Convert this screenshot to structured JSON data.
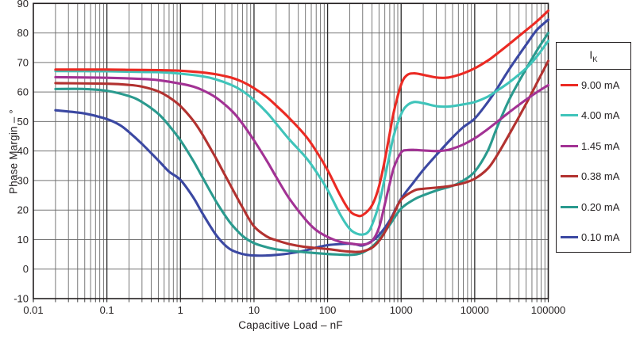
{
  "chart_data": {
    "type": "line",
    "title": "",
    "xlabel": "Capacitive Load – nF",
    "ylabel": "Phase Margin – °",
    "x_scale": "log",
    "xlim": [
      0.01,
      100000
    ],
    "ylim": [
      -10,
      90
    ],
    "x_tick_labels": [
      "0.01",
      "0.1",
      "1",
      "10",
      "100",
      "1000",
      "10000",
      "100000"
    ],
    "x_tick_values": [
      0.01,
      0.1,
      1,
      10,
      100,
      1000,
      10000,
      100000
    ],
    "y_tick_values": [
      90,
      80,
      70,
      60,
      50,
      40,
      30,
      20,
      10,
      0,
      -10
    ],
    "grid": "on",
    "legend_position": "right",
    "legend_title_main": "I",
    "legend_title_sub": "K",
    "series": [
      {
        "name": "9.00 mA",
        "color": "#eb2a23",
        "points": [
          [
            0.02,
            67.6
          ],
          [
            0.05,
            67.6
          ],
          [
            0.1,
            67.6
          ],
          [
            0.2,
            67.5
          ],
          [
            0.5,
            67.4
          ],
          [
            1,
            67.2
          ],
          [
            2,
            66.6
          ],
          [
            3,
            66.0
          ],
          [
            5,
            64.8
          ],
          [
            7,
            63.4
          ],
          [
            10,
            61.3
          ],
          [
            15,
            58.2
          ],
          [
            20,
            55.4
          ],
          [
            30,
            51.2
          ],
          [
            50,
            45.2
          ],
          [
            70,
            40.0
          ],
          [
            100,
            33.5
          ],
          [
            150,
            24.8
          ],
          [
            200,
            19.7
          ],
          [
            250,
            18.2
          ],
          [
            300,
            18.3
          ],
          [
            400,
            21.5
          ],
          [
            500,
            28.0
          ],
          [
            600,
            37.0
          ],
          [
            700,
            46.0
          ],
          [
            800,
            53.5
          ],
          [
            1000,
            62.5
          ],
          [
            1200,
            65.7
          ],
          [
            1500,
            66.3
          ],
          [
            2000,
            65.8
          ],
          [
            3000,
            64.9
          ],
          [
            4000,
            64.8
          ],
          [
            5000,
            65.2
          ],
          [
            7000,
            66.3
          ],
          [
            10000,
            68.0
          ],
          [
            15000,
            70.6
          ],
          [
            20000,
            72.9
          ],
          [
            30000,
            76.4
          ],
          [
            50000,
            80.9
          ],
          [
            70000,
            83.9
          ],
          [
            100000,
            87.5
          ]
        ]
      },
      {
        "name": "4.00 mA",
        "color": "#3fc4ba",
        "points": [
          [
            0.02,
            67.1
          ],
          [
            0.1,
            67.0
          ],
          [
            0.3,
            66.8
          ],
          [
            0.5,
            66.7
          ],
          [
            1,
            66.2
          ],
          [
            2,
            65.3
          ],
          [
            3,
            64.3
          ],
          [
            5,
            62.3
          ],
          [
            7,
            60.3
          ],
          [
            10,
            57.3
          ],
          [
            15,
            53.0
          ],
          [
            20,
            49.3
          ],
          [
            30,
            44.0
          ],
          [
            50,
            38.0
          ],
          [
            70,
            33.0
          ],
          [
            100,
            26.8
          ],
          [
            150,
            18.3
          ],
          [
            200,
            13.6
          ],
          [
            250,
            12.0
          ],
          [
            300,
            11.7
          ],
          [
            350,
            12.4
          ],
          [
            400,
            14.8
          ],
          [
            500,
            22.0
          ],
          [
            600,
            31.0
          ],
          [
            700,
            39.0
          ],
          [
            800,
            45.5
          ],
          [
            1000,
            52.5
          ],
          [
            1200,
            55.4
          ],
          [
            1500,
            56.6
          ],
          [
            2000,
            56.2
          ],
          [
            3000,
            55.2
          ],
          [
            4000,
            55.0
          ],
          [
            5000,
            55.2
          ],
          [
            7000,
            55.8
          ],
          [
            10000,
            56.6
          ],
          [
            15000,
            58.4
          ],
          [
            20000,
            60.4
          ],
          [
            30000,
            63.4
          ],
          [
            50000,
            68.0
          ],
          [
            70000,
            72.0
          ],
          [
            100000,
            77.3
          ]
        ]
      },
      {
        "name": "1.45 mA",
        "color": "#a23294",
        "points": [
          [
            0.02,
            65.0
          ],
          [
            0.1,
            64.8
          ],
          [
            0.3,
            64.4
          ],
          [
            0.5,
            64.0
          ],
          [
            1,
            62.8
          ],
          [
            1.5,
            61.8
          ],
          [
            2,
            60.6
          ],
          [
            3,
            58.2
          ],
          [
            5,
            53.6
          ],
          [
            7,
            49.2
          ],
          [
            10,
            43.6
          ],
          [
            15,
            36.6
          ],
          [
            20,
            31.2
          ],
          [
            30,
            24.0
          ],
          [
            50,
            16.8
          ],
          [
            70,
            13.2
          ],
          [
            100,
            10.9
          ],
          [
            150,
            9.2
          ],
          [
            200,
            8.7
          ],
          [
            300,
            8.3
          ],
          [
            400,
            9.5
          ],
          [
            500,
            14.0
          ],
          [
            600,
            22.0
          ],
          [
            700,
            29.0
          ],
          [
            800,
            34.5
          ],
          [
            1000,
            39.5
          ],
          [
            1200,
            40.3
          ],
          [
            1500,
            40.4
          ],
          [
            2000,
            40.2
          ],
          [
            3000,
            40.0
          ],
          [
            4000,
            40.2
          ],
          [
            5000,
            40.8
          ],
          [
            7000,
            42.2
          ],
          [
            10000,
            44.3
          ],
          [
            15000,
            47.4
          ],
          [
            20000,
            49.8
          ],
          [
            30000,
            53.3
          ],
          [
            50000,
            57.4
          ],
          [
            70000,
            59.9
          ],
          [
            100000,
            62.3
          ]
        ]
      },
      {
        "name": "0.38 mA",
        "color": "#b23230",
        "points": [
          [
            0.02,
            63.0
          ],
          [
            0.1,
            62.8
          ],
          [
            0.2,
            62.4
          ],
          [
            0.3,
            61.8
          ],
          [
            0.5,
            60.2
          ],
          [
            0.7,
            58.2
          ],
          [
            1,
            55.2
          ],
          [
            1.5,
            50.2
          ],
          [
            2,
            45.5
          ],
          [
            3,
            37.8
          ],
          [
            4,
            32.0
          ],
          [
            5,
            27.5
          ],
          [
            7,
            20.8
          ],
          [
            10,
            14.5
          ],
          [
            15,
            11.0
          ],
          [
            20,
            9.8
          ],
          [
            30,
            8.5
          ],
          [
            50,
            7.5
          ],
          [
            100,
            6.8
          ],
          [
            150,
            6.2
          ],
          [
            200,
            5.9
          ],
          [
            250,
            5.8
          ],
          [
            300,
            6.0
          ],
          [
            400,
            7.2
          ],
          [
            500,
            9.5
          ],
          [
            600,
            12.5
          ],
          [
            700,
            15.8
          ],
          [
            800,
            18.8
          ],
          [
            1000,
            23.5
          ],
          [
            1500,
            26.6
          ],
          [
            2000,
            27.2
          ],
          [
            3000,
            27.6
          ],
          [
            4000,
            27.9
          ],
          [
            5000,
            28.3
          ],
          [
            7000,
            29.1
          ],
          [
            10000,
            30.6
          ],
          [
            15000,
            34.0
          ],
          [
            20000,
            38.4
          ],
          [
            30000,
            46.0
          ],
          [
            50000,
            56.0
          ],
          [
            70000,
            63.0
          ],
          [
            100000,
            70.5
          ]
        ]
      },
      {
        "name": "0.20 mA",
        "color": "#2a9a8e",
        "points": [
          [
            0.02,
            61.0
          ],
          [
            0.05,
            61.0
          ],
          [
            0.1,
            60.4
          ],
          [
            0.2,
            58.6
          ],
          [
            0.3,
            56.6
          ],
          [
            0.5,
            52.6
          ],
          [
            0.7,
            48.6
          ],
          [
            1,
            43.6
          ],
          [
            1.5,
            36.6
          ],
          [
            2,
            31.0
          ],
          [
            3,
            23.2
          ],
          [
            4,
            18.3
          ],
          [
            5,
            15.0
          ],
          [
            7,
            11.2
          ],
          [
            10,
            8.8
          ],
          [
            15,
            7.4
          ],
          [
            20,
            6.7
          ],
          [
            30,
            6.2
          ],
          [
            50,
            5.7
          ],
          [
            100,
            5.1
          ],
          [
            150,
            4.9
          ],
          [
            200,
            4.8
          ],
          [
            250,
            5.0
          ],
          [
            300,
            5.6
          ],
          [
            400,
            7.5
          ],
          [
            500,
            10.0
          ],
          [
            700,
            15.0
          ],
          [
            1000,
            20.5
          ],
          [
            1500,
            23.6
          ],
          [
            2000,
            25.0
          ],
          [
            3000,
            26.6
          ],
          [
            5000,
            28.2
          ],
          [
            7000,
            30.0
          ],
          [
            10000,
            33.0
          ],
          [
            15000,
            40.0
          ],
          [
            20000,
            47.8
          ],
          [
            30000,
            57.8
          ],
          [
            50000,
            67.8
          ],
          [
            70000,
            74.0
          ],
          [
            100000,
            80.0
          ]
        ]
      },
      {
        "name": "0.10 mA",
        "color": "#3b48a2",
        "points": [
          [
            0.02,
            53.8
          ],
          [
            0.05,
            52.7
          ],
          [
            0.1,
            50.8
          ],
          [
            0.15,
            48.8
          ],
          [
            0.2,
            46.4
          ],
          [
            0.3,
            42.4
          ],
          [
            0.5,
            36.8
          ],
          [
            0.7,
            33.0
          ],
          [
            1,
            30.2
          ],
          [
            1.5,
            24.2
          ],
          [
            2,
            18.8
          ],
          [
            3,
            11.8
          ],
          [
            4,
            8.2
          ],
          [
            5,
            6.4
          ],
          [
            7,
            5.1
          ],
          [
            10,
            4.6
          ],
          [
            15,
            4.6
          ],
          [
            20,
            4.8
          ],
          [
            30,
            5.3
          ],
          [
            50,
            6.3
          ],
          [
            70,
            7.3
          ],
          [
            100,
            8.1
          ],
          [
            150,
            8.5
          ],
          [
            200,
            8.6
          ],
          [
            250,
            8.3
          ],
          [
            300,
            8.0
          ],
          [
            400,
            9.5
          ],
          [
            500,
            11.5
          ],
          [
            700,
            16.5
          ],
          [
            1000,
            23.8
          ],
          [
            1500,
            29.6
          ],
          [
            2000,
            33.6
          ],
          [
            3000,
            38.6
          ],
          [
            5000,
            44.6
          ],
          [
            7000,
            48.1
          ],
          [
            10000,
            51.0
          ],
          [
            15000,
            56.5
          ],
          [
            20000,
            61.0
          ],
          [
            30000,
            68.0
          ],
          [
            50000,
            76.0
          ],
          [
            70000,
            81.0
          ],
          [
            100000,
            84.5
          ]
        ]
      }
    ],
    "frame_color": "#231f20",
    "major_grid_color": "#2b2b2b",
    "minor_grid_color": "#6a6a6a",
    "horizontal_grid_color": "#757575"
  }
}
